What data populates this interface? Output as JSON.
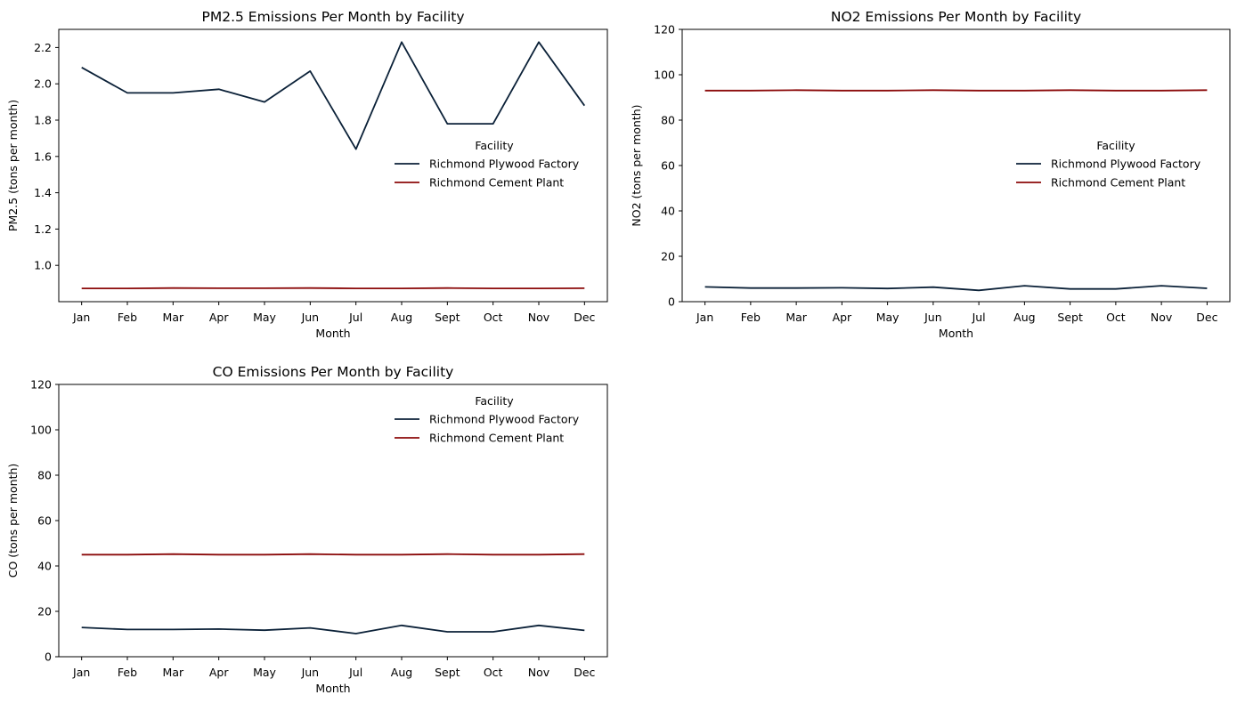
{
  "figure": {
    "colors": {
      "Richmond Plywood Factory": "#0b2138",
      "Richmond Cement Plant": "#8b0a0a"
    }
  },
  "chart_data": [
    {
      "type": "line",
      "title": "PM2.5 Emissions Per Month by Facility",
      "xlabel": "Month",
      "ylabel": "PM2.5 (tons per month)",
      "categories": [
        "Jan",
        "Feb",
        "Mar",
        "Apr",
        "May",
        "Jun",
        "Jul",
        "Aug",
        "Sept",
        "Oct",
        "Nov",
        "Dec"
      ],
      "ylim": [
        0.8,
        2.3
      ],
      "yticks": [
        1.0,
        1.2,
        1.4,
        1.6,
        1.8,
        2.0,
        2.2
      ],
      "ytick_labels": [
        "1.0",
        "1.2",
        "1.4",
        "1.6",
        "1.8",
        "2.0",
        "2.2"
      ],
      "legend": {
        "title": "Facility",
        "position": "center-right"
      },
      "series": [
        {
          "name": "Richmond Plywood Factory",
          "values": [
            2.09,
            1.95,
            1.95,
            1.97,
            1.9,
            2.07,
            1.64,
            2.23,
            1.78,
            1.78,
            2.23,
            1.88
          ]
        },
        {
          "name": "Richmond Cement Plant",
          "values": [
            0.873,
            0.873,
            0.875,
            0.874,
            0.874,
            0.875,
            0.873,
            0.873,
            0.875,
            0.873,
            0.873,
            0.874
          ]
        }
      ]
    },
    {
      "type": "line",
      "title": "NO2 Emissions Per Month by Facility",
      "xlabel": "Month",
      "ylabel": "NO2 (tons per month)",
      "categories": [
        "Jan",
        "Feb",
        "Mar",
        "Apr",
        "May",
        "Jun",
        "Jul",
        "Aug",
        "Sept",
        "Oct",
        "Nov",
        "Dec"
      ],
      "ylim": [
        0,
        120
      ],
      "yticks": [
        0,
        20,
        40,
        60,
        80,
        100,
        120
      ],
      "ytick_labels": [
        "0",
        "20",
        "40",
        "60",
        "80",
        "100",
        "120"
      ],
      "legend": {
        "title": "Facility",
        "position": "center-right"
      },
      "series": [
        {
          "name": "Richmond Plywood Factory",
          "values": [
            6.5,
            6.0,
            6.0,
            6.1,
            5.8,
            6.4,
            5.0,
            7.0,
            5.6,
            5.6,
            7.0,
            5.9
          ]
        },
        {
          "name": "Richmond Cement Plant",
          "values": [
            93.0,
            93.0,
            93.2,
            93.0,
            93.0,
            93.2,
            93.0,
            93.0,
            93.2,
            93.0,
            93.0,
            93.2
          ]
        }
      ]
    },
    {
      "type": "line",
      "title": "CO Emissions Per Month by Facility",
      "xlabel": "Month",
      "ylabel": "CO (tons per month)",
      "categories": [
        "Jan",
        "Feb",
        "Mar",
        "Apr",
        "May",
        "Jun",
        "Jul",
        "Aug",
        "Sept",
        "Oct",
        "Nov",
        "Dec"
      ],
      "ylim": [
        0,
        120
      ],
      "yticks": [
        0,
        20,
        40,
        60,
        80,
        100,
        120
      ],
      "ytick_labels": [
        "0",
        "20",
        "40",
        "60",
        "80",
        "100",
        "120"
      ],
      "legend": {
        "title": "Facility",
        "position": "upper-right"
      },
      "series": [
        {
          "name": "Richmond Plywood Factory",
          "values": [
            12.9,
            12.0,
            12.0,
            12.2,
            11.7,
            12.7,
            10.2,
            13.8,
            11.0,
            11.0,
            13.8,
            11.6
          ]
        },
        {
          "name": "Richmond Cement Plant",
          "values": [
            45.0,
            45.0,
            45.2,
            45.0,
            45.0,
            45.2,
            45.0,
            45.0,
            45.2,
            45.0,
            45.0,
            45.2
          ]
        }
      ]
    }
  ]
}
